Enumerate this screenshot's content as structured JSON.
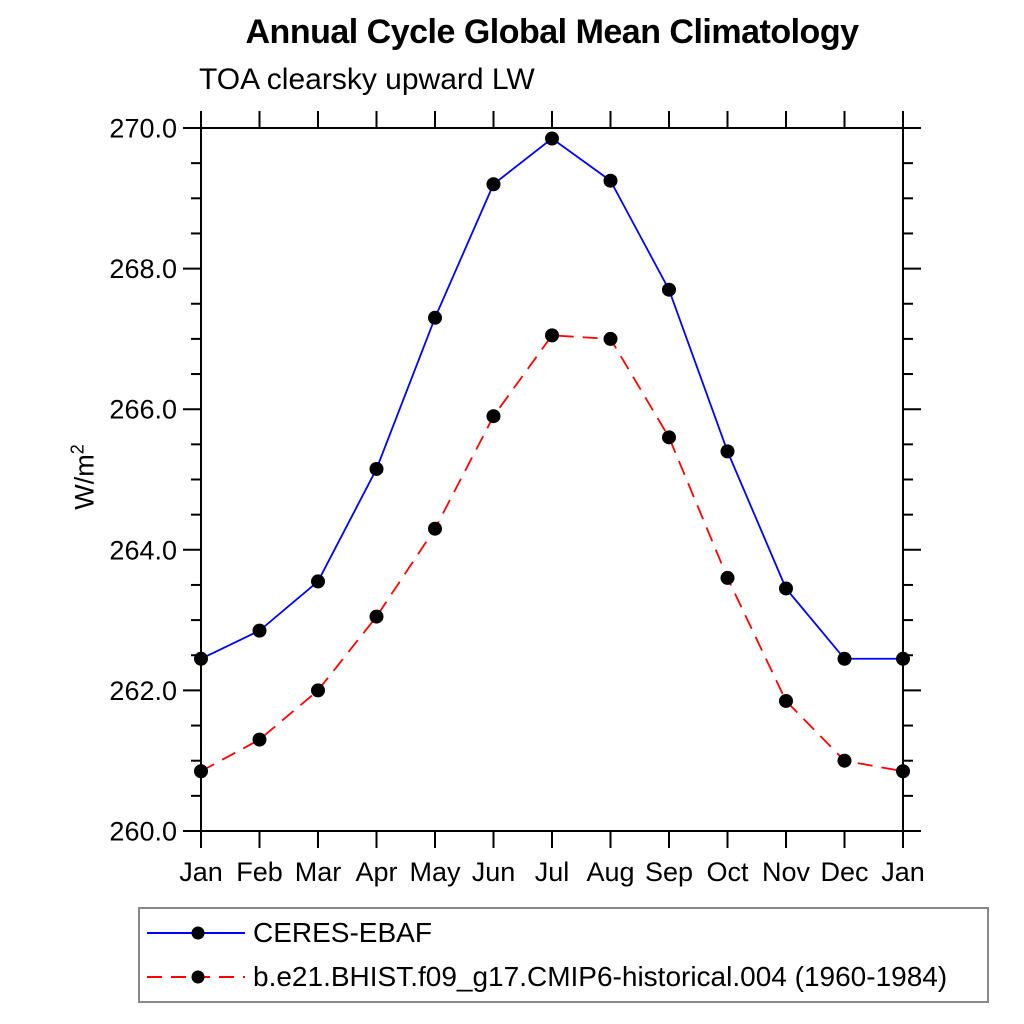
{
  "title": "Annual Cycle Global Mean Climatology",
  "subtitle": "TOA clearsky upward LW",
  "ylabel": "W/m",
  "ylabel_exponent": "2",
  "chart_data": {
    "type": "line",
    "title": "Annual Cycle Global Mean Climatology",
    "subtitle": "TOA clearsky upward LW",
    "ylabel": "W/m2",
    "categories": [
      "Jan",
      "Feb",
      "Mar",
      "Apr",
      "May",
      "Jun",
      "Jul",
      "Aug",
      "Sep",
      "Oct",
      "Nov",
      "Dec",
      "Jan"
    ],
    "series": [
      {
        "name": "CERES-EBAF",
        "color": "#0000ff",
        "line_style": "solid",
        "marker": "filled-circle",
        "marker_color": "#000000",
        "values": [
          262.45,
          262.85,
          263.55,
          265.15,
          267.3,
          269.2,
          269.85,
          269.25,
          267.7,
          265.4,
          263.45,
          262.45,
          262.45
        ]
      },
      {
        "name": "b.e21.BHIST.f09_g17.CMIP6-historical.004 (1960-1984)",
        "color": "#ff0000",
        "line_style": "dashed",
        "marker": "filled-circle",
        "marker_color": "#000000",
        "values": [
          260.85,
          261.3,
          262.0,
          263.05,
          264.3,
          265.9,
          267.05,
          267.0,
          265.6,
          263.6,
          261.85,
          261.0,
          260.85
        ]
      }
    ],
    "ylim": [
      260.0,
      270.0
    ],
    "y_major_step": 2.0,
    "y_minor_step": 0.5,
    "y_tick_labels": [
      "260.0",
      "262.0",
      "264.0",
      "266.0",
      "268.0",
      "270.0"
    ],
    "grid": false,
    "legend_position": "bottom-left",
    "legend_border_color": "#888888"
  }
}
